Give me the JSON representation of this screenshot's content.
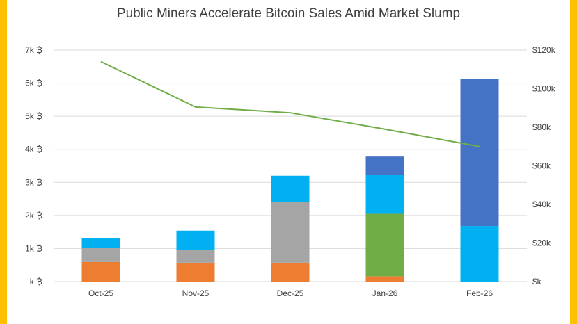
{
  "chart_data": {
    "type": "bar",
    "subtype": "stacked-bar-with-line",
    "title": "Public Miners Accelerate Bitcoin Sales Amid Market Slump",
    "categories": [
      "Oct-25",
      "Nov-25",
      "Dec-25",
      "Jan-26",
      "Feb-26"
    ],
    "series": [
      {
        "color": "#ed7d31",
        "values": [
          590,
          570,
          570,
          160,
          0
        ]
      },
      {
        "color": "#a5a5a5",
        "values": [
          420,
          390,
          1830,
          0,
          0
        ]
      },
      {
        "color": "#70ad47",
        "values": [
          0,
          0,
          0,
          1890,
          0
        ]
      },
      {
        "color": "#00b0f0",
        "values": [
          300,
          580,
          800,
          1170,
          1680
        ]
      },
      {
        "color": "#4472c4",
        "values": [
          0,
          0,
          0,
          560,
          4450
        ]
      }
    ],
    "line": {
      "axis": "right",
      "color": "#70ad47",
      "values": [
        114000,
        90500,
        87500,
        79000,
        70000
      ]
    },
    "y_left": {
      "min": 0,
      "max": 7000,
      "ticks": [
        "k ₿",
        "1k ₿",
        "2k ₿",
        "3k ₿",
        "4k ₿",
        "5k ₿",
        "6k ₿",
        "7k ₿"
      ]
    },
    "y_right": {
      "min": 0,
      "max": 120000,
      "ticks": [
        "$k",
        "$20k",
        "$40k",
        "$60k",
        "$80k",
        "$100k",
        "$120k"
      ]
    },
    "grid": true,
    "legend": "none"
  }
}
